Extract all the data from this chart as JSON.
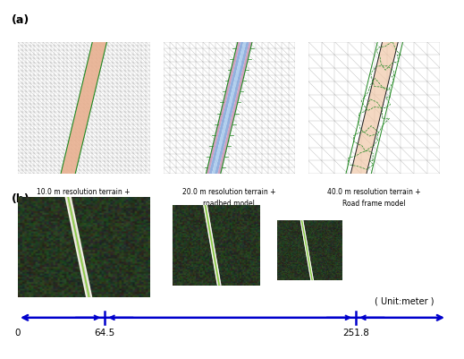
{
  "panel_a_label": "(a)",
  "panel_b_label": "(b)",
  "captions_a": [
    "10.0 m resolution terrain +\noriginal lane model",
    "20.0 m resolution terrain +\nroadbed model",
    "40.0 m resolution terrain +\nRoad frame model"
  ],
  "arrow_color": "#0000cc",
  "arrow_label": "( Unit:meter )",
  "tick_labels": [
    "0",
    "64.5",
    "251.8"
  ],
  "tick_vals": [
    0,
    64.5,
    251.8
  ],
  "arrow_max": 320.0,
  "bg_color": "#ffffff"
}
